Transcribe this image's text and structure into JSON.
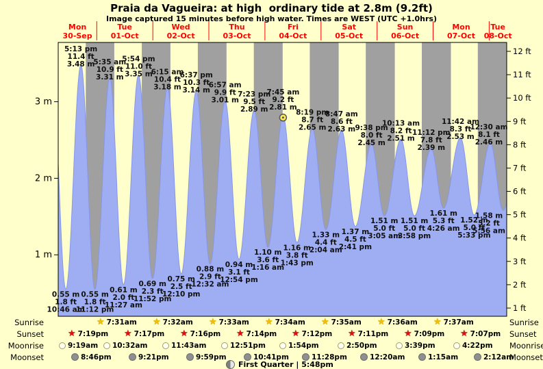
{
  "title": "Praia da Vagueira: at high  ordinary tide at 2.8m (9.2ft)",
  "subtitle": "Image captured 15 minutes before high water. Times are WEST (UTC +1.0hrs)",
  "colors": {
    "background": "#ffffcc",
    "night_band": "#a0a0a0",
    "tide_fill": "#9fadf2",
    "tide_edge": "#8697e8",
    "day_label": "#ff0000",
    "marker_fill": "#ffe94d",
    "marker_ring": "#555555",
    "plot_border": "#000000"
  },
  "chart_data": {
    "type": "area",
    "title": "Praia da Vagueira: at high  ordinary tide at 2.8m (9.2ft)",
    "ylabel_left": "m",
    "ylabel_right": "ft",
    "grid": false,
    "days": [
      {
        "name": "Mon",
        "date": "30-Sep"
      },
      {
        "name": "Tue",
        "date": "01-Oct"
      },
      {
        "name": "Wed",
        "date": "02-Oct"
      },
      {
        "name": "Thu",
        "date": "03-Oct"
      },
      {
        "name": "Fri",
        "date": "04-Oct"
      },
      {
        "name": "Sat",
        "date": "05-Oct"
      },
      {
        "name": "Sun",
        "date": "06-Oct"
      },
      {
        "name": "Mon",
        "date": "07-Oct"
      },
      {
        "name": "Tue",
        "date": "08-Oct"
      }
    ],
    "y_axis_left_ticks": [
      {
        "label": "3 m",
        "v": 3
      },
      {
        "label": "2 m",
        "v": 2
      },
      {
        "label": "1 m",
        "v": 1
      }
    ],
    "y_axis_right_ticks": [
      {
        "label": "12 ft",
        "v": 12
      },
      {
        "label": "11 ft",
        "v": 11
      },
      {
        "label": "10 ft",
        "v": 10
      },
      {
        "label": "9 ft",
        "v": 9
      },
      {
        "label": "8 ft",
        "v": 8
      },
      {
        "label": "7 ft",
        "v": 7
      },
      {
        "label": "6 ft",
        "v": 6
      },
      {
        "label": "5 ft",
        "v": 5
      },
      {
        "label": "4 ft",
        "v": 4
      },
      {
        "label": "3 ft",
        "v": 3
      },
      {
        "label": "2 ft",
        "v": 2
      },
      {
        "label": "1 ft",
        "v": 1
      }
    ],
    "extremes": [
      {
        "day": 0,
        "type": "low",
        "time": "10:46 am",
        "m": 0.55,
        "ft": 1.8
      },
      {
        "day": 0,
        "type": "high",
        "time": "5:13 pm",
        "m": 3.48,
        "ft": 11.4
      },
      {
        "day": 0,
        "type": "low",
        "time": "11:12 pm",
        "m": 0.55,
        "ft": 1.8
      },
      {
        "day": 1,
        "type": "high",
        "time": "5:35 am",
        "m": 3.31,
        "ft": 10.9
      },
      {
        "day": 1,
        "type": "low",
        "time": "11:27 am",
        "m": 0.61,
        "ft": 2.0
      },
      {
        "day": 1,
        "type": "high",
        "time": "5:54 pm",
        "m": 3.35,
        "ft": 11.0
      },
      {
        "day": 1,
        "type": "low",
        "time": "11:52 pm",
        "m": 0.69,
        "ft": 2.3
      },
      {
        "day": 2,
        "type": "high",
        "time": "6:15 am",
        "m": 3.18,
        "ft": 10.4
      },
      {
        "day": 2,
        "type": "low",
        "time": "12:10 pm",
        "m": 0.75,
        "ft": 2.5
      },
      {
        "day": 2,
        "type": "high",
        "time": "6:37 pm",
        "m": 3.14,
        "ft": 10.3
      },
      {
        "day": 3,
        "type": "low",
        "time": "12:32 am",
        "m": 0.88,
        "ft": 2.9
      },
      {
        "day": 3,
        "type": "high",
        "time": "6:57 am",
        "m": 3.01,
        "ft": 9.9
      },
      {
        "day": 3,
        "type": "low",
        "time": "12:54 pm",
        "m": 0.94,
        "ft": 3.1
      },
      {
        "day": 3,
        "type": "high",
        "time": "7:23 pm",
        "m": 2.89,
        "ft": 9.5
      },
      {
        "day": 4,
        "type": "low",
        "time": "1:16 am",
        "m": 1.1,
        "ft": 3.6
      },
      {
        "day": 4,
        "type": "high",
        "time": "7:45 am",
        "m": 2.81,
        "ft": 9.2,
        "current": true
      },
      {
        "day": 4,
        "type": "low",
        "time": "1:43 pm",
        "m": 1.16,
        "ft": 3.8
      },
      {
        "day": 4,
        "type": "high",
        "time": "8:19 pm",
        "m": 2.65,
        "ft": 8.7
      },
      {
        "day": 5,
        "type": "low",
        "time": "2:04 am",
        "m": 1.33,
        "ft": 4.4
      },
      {
        "day": 5,
        "type": "high",
        "time": "8:47 am",
        "m": 2.63,
        "ft": 8.6
      },
      {
        "day": 5,
        "type": "low",
        "time": "2:41 pm",
        "m": 1.37,
        "ft": 4.5
      },
      {
        "day": 5,
        "type": "high",
        "time": "9:38 pm",
        "m": 2.45,
        "ft": 8.0
      },
      {
        "day": 6,
        "type": "low",
        "time": "3:05 am",
        "m": 1.51,
        "ft": 5.0
      },
      {
        "day": 6,
        "type": "high",
        "time": "10:13 am",
        "m": 2.51,
        "ft": 8.2
      },
      {
        "day": 6,
        "type": "low",
        "time": "3:58 pm",
        "m": 1.51,
        "ft": 5.0
      },
      {
        "day": 6,
        "type": "high",
        "time": "11:12 pm",
        "m": 2.39,
        "ft": 7.8
      },
      {
        "day": 7,
        "type": "low",
        "time": "4:26 am",
        "m": 1.61,
        "ft": 5.3
      },
      {
        "day": 7,
        "type": "high",
        "time": "11:42 am",
        "m": 2.53,
        "ft": 8.3
      },
      {
        "day": 7,
        "type": "low",
        "time": "5:33 pm",
        "m": 1.52,
        "ft": 5.0
      },
      {
        "day": 8,
        "type": "high",
        "time": "12:30 am",
        "m": 2.46,
        "ft": 8.1
      },
      {
        "day": 8,
        "type": "low",
        "time": "5:56 am",
        "m": 1.58,
        "ft": 5.2
      }
    ]
  },
  "astro": {
    "rows": [
      {
        "id": "sunrise",
        "label": "Sunrise",
        "icon": "sunrise-star",
        "entries": [
          {
            "day": 1,
            "time": "7:31am"
          },
          {
            "day": 2,
            "time": "7:32am"
          },
          {
            "day": 3,
            "time": "7:33am"
          },
          {
            "day": 4,
            "time": "7:34am"
          },
          {
            "day": 5,
            "time": "7:35am"
          },
          {
            "day": 6,
            "time": "7:36am"
          },
          {
            "day": 7,
            "time": "7:37am"
          }
        ]
      },
      {
        "id": "sunset",
        "label": "Sunset",
        "icon": "sunset-star",
        "entries": [
          {
            "day": 0,
            "time": "7:19pm"
          },
          {
            "day": 1,
            "time": "7:17pm"
          },
          {
            "day": 2,
            "time": "7:16pm"
          },
          {
            "day": 3,
            "time": "7:14pm"
          },
          {
            "day": 4,
            "time": "7:12pm"
          },
          {
            "day": 5,
            "time": "7:11pm"
          },
          {
            "day": 6,
            "time": "7:09pm"
          },
          {
            "day": 7,
            "time": "7:07pm"
          }
        ]
      },
      {
        "id": "moonrise",
        "label": "Moonrise",
        "icon": "moonrise-circle",
        "entries": [
          {
            "day": 0,
            "time": "9:19am"
          },
          {
            "day": 1,
            "time": "10:32am"
          },
          {
            "day": 2,
            "time": "11:43am"
          },
          {
            "day": 3,
            "time": "12:51pm"
          },
          {
            "day": 4,
            "time": "1:54pm"
          },
          {
            "day": 5,
            "time": "2:50pm"
          },
          {
            "day": 6,
            "time": "3:39pm"
          },
          {
            "day": 7,
            "time": "4:22pm"
          }
        ]
      },
      {
        "id": "moonset",
        "label": "Moonset",
        "icon": "moonset-circle",
        "entries": [
          {
            "day": 0,
            "time": "8:46pm"
          },
          {
            "day": 1,
            "time": "9:21pm"
          },
          {
            "day": 2,
            "time": "9:59pm"
          },
          {
            "day": 3,
            "time": "10:41pm"
          },
          {
            "day": 4,
            "time": "11:28pm"
          },
          {
            "day": 6,
            "time": "12:20am"
          },
          {
            "day": 7,
            "time": "1:15am"
          },
          {
            "day": 8,
            "time": "2:12am"
          }
        ]
      }
    ],
    "phase": {
      "icon": "first-quarter-moon",
      "text": "First Quarter | 5:48pm"
    }
  }
}
